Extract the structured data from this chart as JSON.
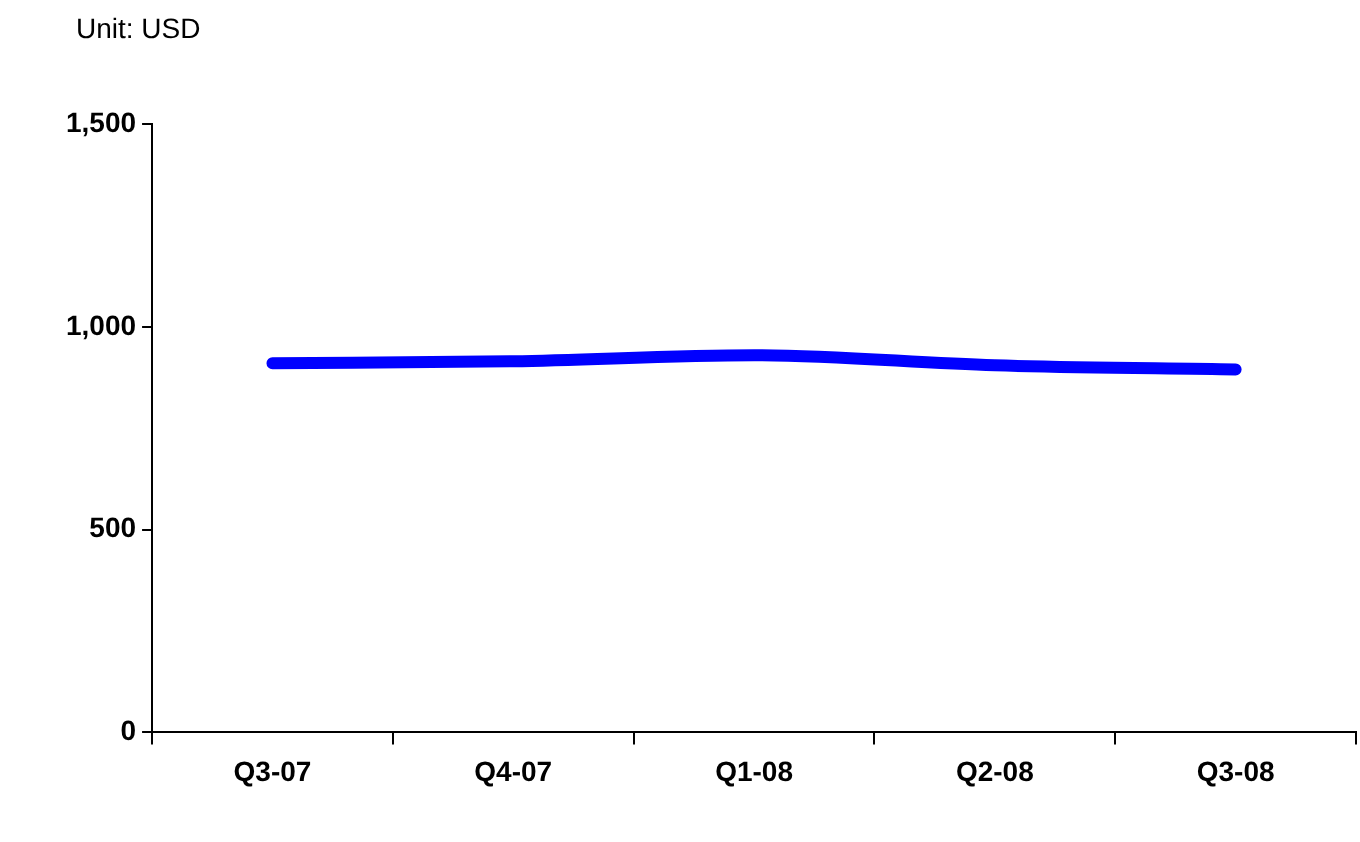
{
  "chart_data": {
    "type": "line",
    "annotations": [
      "Unit: USD"
    ],
    "categories": [
      "Q3-07",
      "Q4-07",
      "Q1-08",
      "Q2-08",
      "Q3-08"
    ],
    "series": [
      {
        "color": "#0000ff",
        "values": [
          910,
          915,
          930,
          905,
          895
        ]
      }
    ],
    "ylim": [
      0,
      1500
    ],
    "yticks": [
      0,
      500,
      {
        "value": 1000,
        "label": "1,000"
      },
      {
        "value": 1500,
        "label": "1,500"
      }
    ],
    "grid": false,
    "legend": false,
    "marker": "none"
  }
}
